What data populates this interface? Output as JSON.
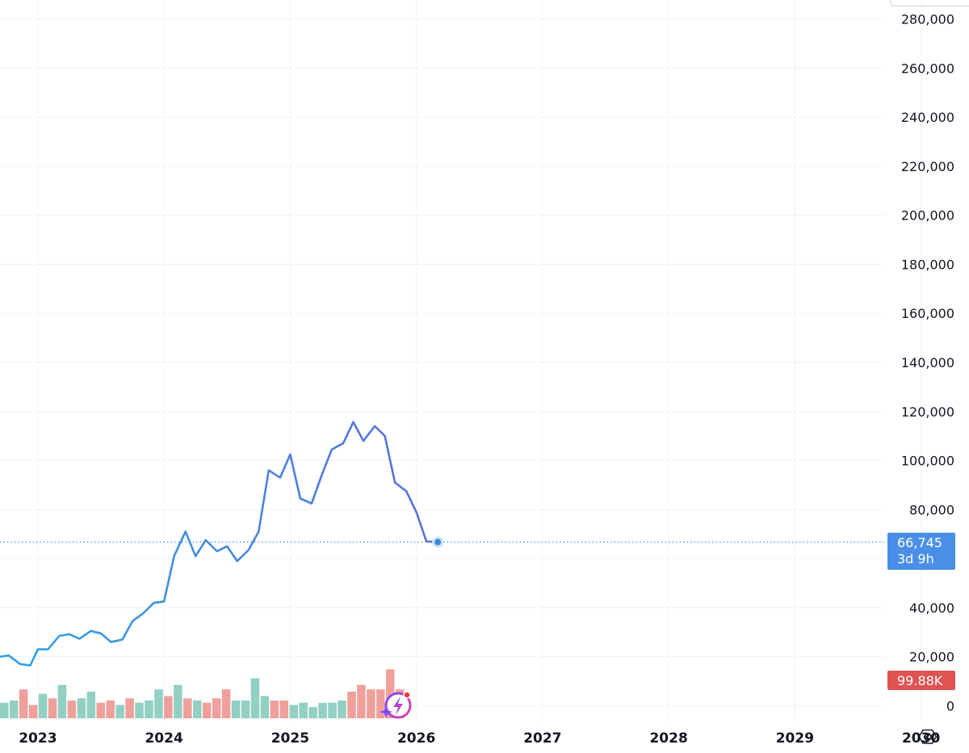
{
  "chart_data": {
    "type": "line",
    "y_ticks": [
      "280,000",
      "260,000",
      "240,000",
      "220,000",
      "200,000",
      "180,000",
      "160,000",
      "140,000",
      "120,000",
      "100,000",
      "80,000",
      "40,000",
      "20,000",
      "0"
    ],
    "y_tick_values": [
      280000,
      260000,
      240000,
      220000,
      200000,
      180000,
      160000,
      140000,
      120000,
      100000,
      80000,
      40000,
      20000,
      0
    ],
    "ylim": [
      0,
      288000
    ],
    "x_ticks": [
      "2023",
      "2024",
      "2025",
      "2026",
      "2027",
      "2028",
      "2029",
      "2030"
    ],
    "x_tick_values": [
      2023,
      2024,
      2025,
      2026,
      2027,
      2028,
      2029,
      2030
    ],
    "xlim": [
      2022.7,
      2030.38
    ],
    "grid": true,
    "price_series": {
      "x": [
        2022.7,
        2022.77,
        2022.86,
        2022.94,
        2023.0,
        2023.08,
        2023.17,
        2023.25,
        2023.33,
        2023.42,
        2023.5,
        2023.58,
        2023.67,
        2023.75,
        2023.83,
        2023.92,
        2024.0,
        2024.08,
        2024.17,
        2024.25,
        2024.33,
        2024.42,
        2024.5,
        2024.58,
        2024.67,
        2024.75,
        2024.83,
        2024.92,
        2025.0,
        2025.08,
        2025.17,
        2025.25,
        2025.33,
        2025.42,
        2025.5,
        2025.58,
        2025.67,
        2025.75,
        2025.83,
        2025.92,
        2026.0,
        2026.08,
        2026.17
      ],
      "values": [
        20000,
        20500,
        17000,
        16500,
        23000,
        23000,
        28500,
        29200,
        27300,
        30500,
        29500,
        26000,
        27000,
        34500,
        37500,
        42000,
        42500,
        61000,
        71000,
        61000,
        67500,
        63000,
        65000,
        59000,
        63500,
        71000,
        96000,
        93000,
        102500,
        84500,
        82500,
        94000,
        104500,
        107000,
        115700,
        108000,
        114000,
        110000,
        91000,
        87500,
        79000,
        67000,
        66745
      ]
    },
    "volume_series": {
      "unit": "volume bars (relative, red = down, green = up)",
      "values": [
        7,
        8,
        13,
        6,
        11,
        9,
        15,
        8,
        9,
        12,
        7,
        8,
        6,
        9,
        7,
        8,
        13,
        10,
        15,
        9,
        8,
        7,
        9,
        13,
        8,
        8,
        18,
        10,
        8,
        8,
        6,
        7,
        5,
        7,
        7,
        8,
        12,
        15,
        13,
        13,
        22,
        13
      ],
      "up": [
        true,
        true,
        false,
        false,
        true,
        false,
        true,
        false,
        true,
        true,
        false,
        false,
        true,
        false,
        true,
        true,
        true,
        false,
        true,
        false,
        true,
        false,
        false,
        false,
        true,
        true,
        true,
        true,
        false,
        false,
        true,
        true,
        true,
        true,
        true,
        true,
        false,
        false,
        false,
        false,
        false,
        false
      ],
      "ylim": [
        0,
        60
      ]
    },
    "last_price": {
      "value": 66745,
      "label": "66,745",
      "countdown": "3d 9h"
    },
    "last_volume": {
      "label": "99.88K"
    }
  },
  "colors": {
    "line_start": "#2fa3e8",
    "line_end": "#5b6fd9",
    "price_badge": "#4a8fe7",
    "volume_badge": "#e05353",
    "vol_up": "#92d0c4",
    "vol_down": "#f0a09b",
    "grid": "#f0f3fa"
  },
  "icons": {
    "settings": "settings-hexagon-icon",
    "assistant": "lightning-spark-icon"
  }
}
